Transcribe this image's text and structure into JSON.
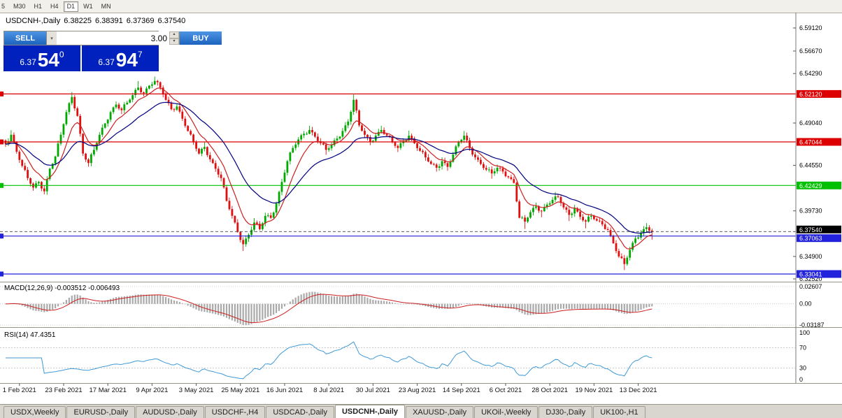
{
  "toolbar": {
    "timeframes": [
      {
        "label": "5",
        "active": false
      },
      {
        "label": "M30",
        "active": false
      },
      {
        "label": "H1",
        "active": false
      },
      {
        "label": "H4",
        "active": false
      },
      {
        "label": "D1",
        "active": true
      },
      {
        "label": "W1",
        "active": false
      },
      {
        "label": "MN",
        "active": false
      }
    ]
  },
  "header": {
    "symbol": "USDCNH-,Daily",
    "open": "6.38225",
    "high": "6.38391",
    "low": "6.37369",
    "close": "6.37540"
  },
  "trade_panel": {
    "sell_label": "SELL",
    "buy_label": "BUY",
    "volume": "3.00",
    "bid": {
      "prefix": "6.37",
      "big": "54",
      "sup": "0"
    },
    "ask": {
      "prefix": "6.37",
      "big": "94",
      "sup": "7"
    }
  },
  "chart_data": {
    "type": "candlestick",
    "symbol": "USDCNH-",
    "timeframe": "Daily",
    "y_axis": {
      "top": 6.6045,
      "bottom": 6.323
    },
    "y_ticks": [
      6.5912,
      6.5667,
      6.5429,
      6.4904,
      6.4455,
      6.3973,
      6.349,
      6.3252
    ],
    "h_lines": [
      {
        "price": 6.5212,
        "color": "#dd0000",
        "label": "6.52120"
      },
      {
        "price": 6.47044,
        "color": "#dd0000",
        "label": "6.47044"
      },
      {
        "price": 6.42429,
        "color": "#00c000",
        "label": "6.42429"
      },
      {
        "price": 6.37063,
        "color": "#2222dd",
        "label": "6.37063"
      },
      {
        "price": 6.33041,
        "color": "#2222dd",
        "label": "6.33041"
      }
    ],
    "current_price": {
      "value": 6.3754,
      "label": "6.37540",
      "badge_color": "#000000"
    },
    "close_path": [
      6.468,
      6.478,
      6.46,
      6.445,
      6.432,
      6.422,
      6.428,
      6.418,
      6.442,
      6.455,
      6.478,
      6.502,
      6.518,
      6.498,
      6.458,
      6.448,
      6.462,
      6.478,
      6.49,
      6.502,
      6.51,
      6.504,
      6.512,
      6.52,
      6.528,
      6.522,
      6.53,
      6.535,
      6.528,
      6.515,
      6.505,
      6.508,
      6.495,
      6.482,
      6.47,
      6.458,
      6.465,
      6.452,
      6.442,
      6.432,
      6.408,
      6.392,
      6.375,
      6.362,
      6.372,
      6.385,
      6.378,
      6.392,
      6.39,
      6.405,
      6.428,
      6.45,
      6.464,
      6.473,
      6.479,
      6.483,
      6.476,
      6.469,
      6.462,
      6.467,
      6.474,
      6.482,
      6.492,
      6.515,
      6.488,
      6.478,
      6.47,
      6.477,
      6.483,
      6.477,
      6.47,
      6.464,
      6.471,
      6.477,
      6.469,
      6.461,
      6.454,
      6.447,
      6.443,
      6.45,
      6.444,
      6.457,
      6.47,
      6.477,
      6.464,
      6.454,
      6.447,
      6.441,
      6.437,
      6.443,
      6.439,
      6.433,
      6.427,
      6.39,
      6.386,
      6.396,
      6.402,
      6.397,
      6.404,
      6.409,
      6.412,
      6.401,
      6.393,
      6.4,
      6.391,
      6.386,
      6.392,
      6.387,
      6.383,
      6.377,
      6.363,
      6.349,
      6.341,
      6.356,
      6.368,
      6.374,
      6.38,
      6.3754
    ],
    "candles_per_point": 2,
    "x_labels": [
      {
        "text": "1 Feb 2021",
        "i": 5
      },
      {
        "text": "23 Feb 2021",
        "i": 21
      },
      {
        "text": "17 Mar 2021",
        "i": 37
      },
      {
        "text": "9 Apr 2021",
        "i": 53
      },
      {
        "text": "3 May 2021",
        "i": 69
      },
      {
        "text": "25 May 2021",
        "i": 85
      },
      {
        "text": "16 Jun 2021",
        "i": 101
      },
      {
        "text": "8 Jul 2021",
        "i": 117
      },
      {
        "text": "30 Jul 2021",
        "i": 133
      },
      {
        "text": "23 Aug 2021",
        "i": 149
      },
      {
        "text": "14 Sep 2021",
        "i": 165
      },
      {
        "text": "6 Oct 2021",
        "i": 181
      },
      {
        "text": "28 Oct 2021",
        "i": 197
      },
      {
        "text": "19 Nov 2021",
        "i": 213
      },
      {
        "text": "13 Dec 2021",
        "i": 229
      }
    ],
    "ma": [
      {
        "period": 9,
        "color": "#cc2020"
      },
      {
        "period": 26,
        "color": "#000080"
      }
    ],
    "macd": {
      "label": "MACD(12,26,9)",
      "values": "-0.003512 -0.006493",
      "fast": 12,
      "slow": 26,
      "signal": 9,
      "axis": [
        {
          "v": 0.02607,
          "label": "0.02607"
        },
        {
          "v": 0,
          "label": "0.00"
        },
        {
          "v": -0.03187,
          "label": "-0.03187"
        }
      ],
      "bar_color": "#a9a9a9",
      "signal_color": "#cc2020"
    },
    "rsi": {
      "label": "RSI(14)",
      "value": "47.4351",
      "period": 14,
      "levels": [
        {
          "v": 100,
          "label": "100",
          "line": false
        },
        {
          "v": 70,
          "label": "70",
          "line": true
        },
        {
          "v": 30,
          "label": "30",
          "line": true
        },
        {
          "v": 0,
          "label": "0",
          "line": false
        }
      ],
      "color": "#3e9ad6"
    },
    "colors": {
      "up": "#00a800",
      "down": "#e01010"
    }
  },
  "bottom_tabs": {
    "tabs": [
      {
        "label": "USDX,Weekly",
        "active": false
      },
      {
        "label": "EURUSD-,Daily",
        "active": false
      },
      {
        "label": "AUDUSD-,Daily",
        "active": false
      },
      {
        "label": "USDCHF-,H4",
        "active": false
      },
      {
        "label": "USDCAD-,Daily",
        "active": false
      },
      {
        "label": "USDCNH-,Daily",
        "active": true
      },
      {
        "label": "XAUUSD-,Daily",
        "active": false
      },
      {
        "label": "UKOil-,Weekly",
        "active": false
      },
      {
        "label": "DJ30-,Daily",
        "active": false
      },
      {
        "label": "UK100-,H1",
        "active": false
      }
    ]
  }
}
